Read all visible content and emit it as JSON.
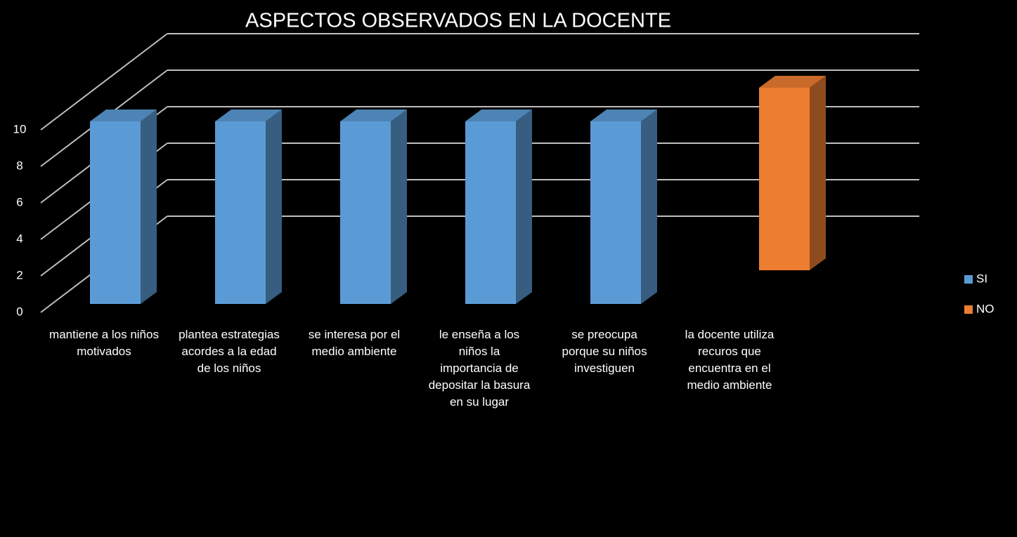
{
  "chart_data": {
    "type": "bar3d",
    "title": "ASPECTOS OBSERVADOS EN LA DOCENTE",
    "categories": [
      "mantiene a los niños motivados",
      "plantea estrategias acordes a la edad de los niños",
      "se interesa por el medio ambiente",
      "le enseña a los niños la importancia de depositar la basura en su lugar",
      "se preocupa porque su niños investiguen",
      "la docente utiliza recuros que encuentra en el medio ambiente"
    ],
    "series": [
      {
        "name": "SI",
        "color": "#5b9bd5",
        "values": [
          10,
          10,
          10,
          10,
          10,
          null
        ]
      },
      {
        "name": "NO",
        "color": "#ed7d31",
        "values": [
          null,
          null,
          null,
          null,
          null,
          10
        ]
      }
    ],
    "ylim": [
      0,
      10
    ],
    "yticks": [
      0,
      2,
      4,
      6,
      8,
      10
    ],
    "grid": true,
    "legend": "right"
  }
}
